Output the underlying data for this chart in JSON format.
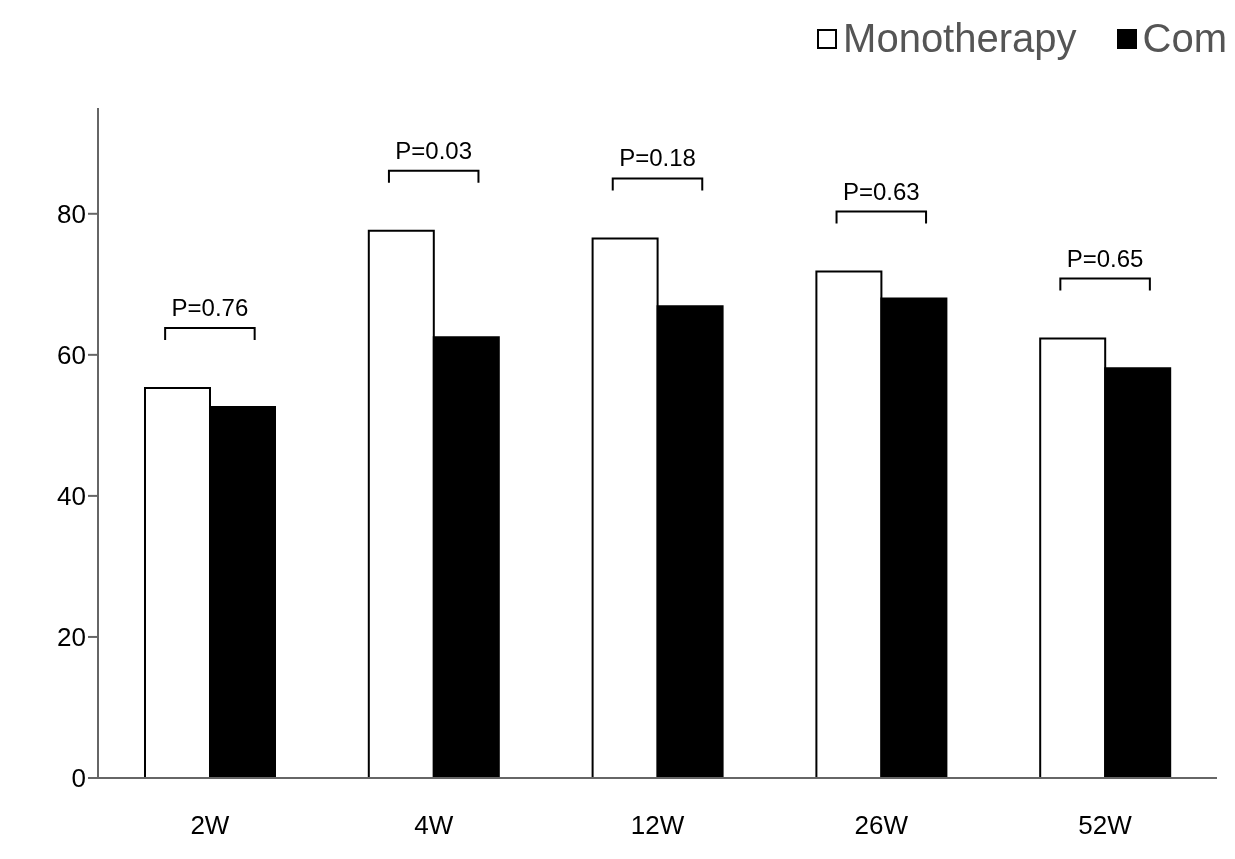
{
  "chart_data": {
    "type": "bar",
    "categories": [
      "2W",
      "4W",
      "12W",
      "26W",
      "52W"
    ],
    "series": [
      {
        "name": "Monotherapy",
        "color": "#ffffff",
        "values": [
          55.3,
          77.6,
          76.5,
          71.8,
          62.3
        ]
      },
      {
        "name": "Com",
        "color": "#000000",
        "values": [
          52.6,
          62.5,
          66.9,
          68.0,
          58.1
        ]
      }
    ],
    "ylim": [
      0,
      95
    ],
    "yticks": [
      0,
      20,
      40,
      60,
      80
    ],
    "grid": false,
    "legend": "top right",
    "annotations": [
      "P=0.76",
      "P=0.03",
      "P=0.18",
      "P=0.63",
      "P=0.65"
    ]
  }
}
